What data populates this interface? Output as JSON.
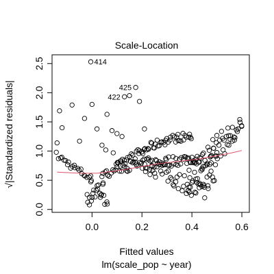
{
  "chart_data": {
    "type": "scatter",
    "title": "Scale-Location",
    "xlabel": "Fitted values",
    "sublabel": "lm(scale_pop ~ year)",
    "ylabel": "√|Standardized residuals|",
    "xlim": [
      -0.16,
      0.63
    ],
    "ylim": [
      -0.05,
      2.65
    ],
    "x_ticks": [
      0.0,
      0.2,
      0.4,
      0.6
    ],
    "x_tick_labels": [
      "0.0",
      "0.2",
      "0.4",
      "0.6"
    ],
    "y_ticks": [
      0.0,
      0.5,
      1.0,
      1.5,
      2.0,
      2.5
    ],
    "y_tick_labels": [
      "0.0",
      "0.5",
      "1.0",
      "1.5",
      "2.0",
      "2.5"
    ],
    "labeled_points": [
      {
        "label": "414",
        "x": -0.005,
        "y": 2.53
      },
      {
        "label": "425",
        "x": 0.175,
        "y": 2.09
      },
      {
        "label": "422",
        "x": 0.13,
        "y": 1.93
      }
    ],
    "outliers": [
      [
        -0.14,
        1.14
      ],
      [
        -0.13,
        1.69
      ],
      [
        -0.12,
        1.4
      ],
      [
        -0.08,
        1.79
      ],
      [
        -0.05,
        1.17
      ],
      [
        -0.03,
        1.56
      ],
      [
        0.0,
        1.8
      ],
      [
        0.02,
        1.38
      ],
      [
        0.04,
        1.1
      ],
      [
        0.06,
        1.63
      ],
      [
        0.08,
        1.35
      ],
      [
        0.1,
        1.3
      ],
      [
        0.12,
        1.25
      ],
      [
        0.15,
        1.95
      ],
      [
        0.19,
        1.85
      ],
      [
        0.21,
        1.38
      ],
      [
        0.055,
        1.02
      ],
      [
        0.085,
        0.97
      ]
    ],
    "smooth_line": [
      [
        -0.14,
        0.64
      ],
      [
        -0.05,
        0.62
      ],
      [
        0.02,
        0.62
      ],
      [
        0.1,
        0.66
      ],
      [
        0.18,
        0.72
      ],
      [
        0.26,
        0.78
      ],
      [
        0.34,
        0.82
      ],
      [
        0.42,
        0.86
      ],
      [
        0.5,
        0.92
      ],
      [
        0.56,
        0.97
      ],
      [
        0.6,
        1.01
      ]
    ],
    "colors": {
      "points": "#000000",
      "smooth": "#DF536B",
      "text": "#000000"
    }
  }
}
